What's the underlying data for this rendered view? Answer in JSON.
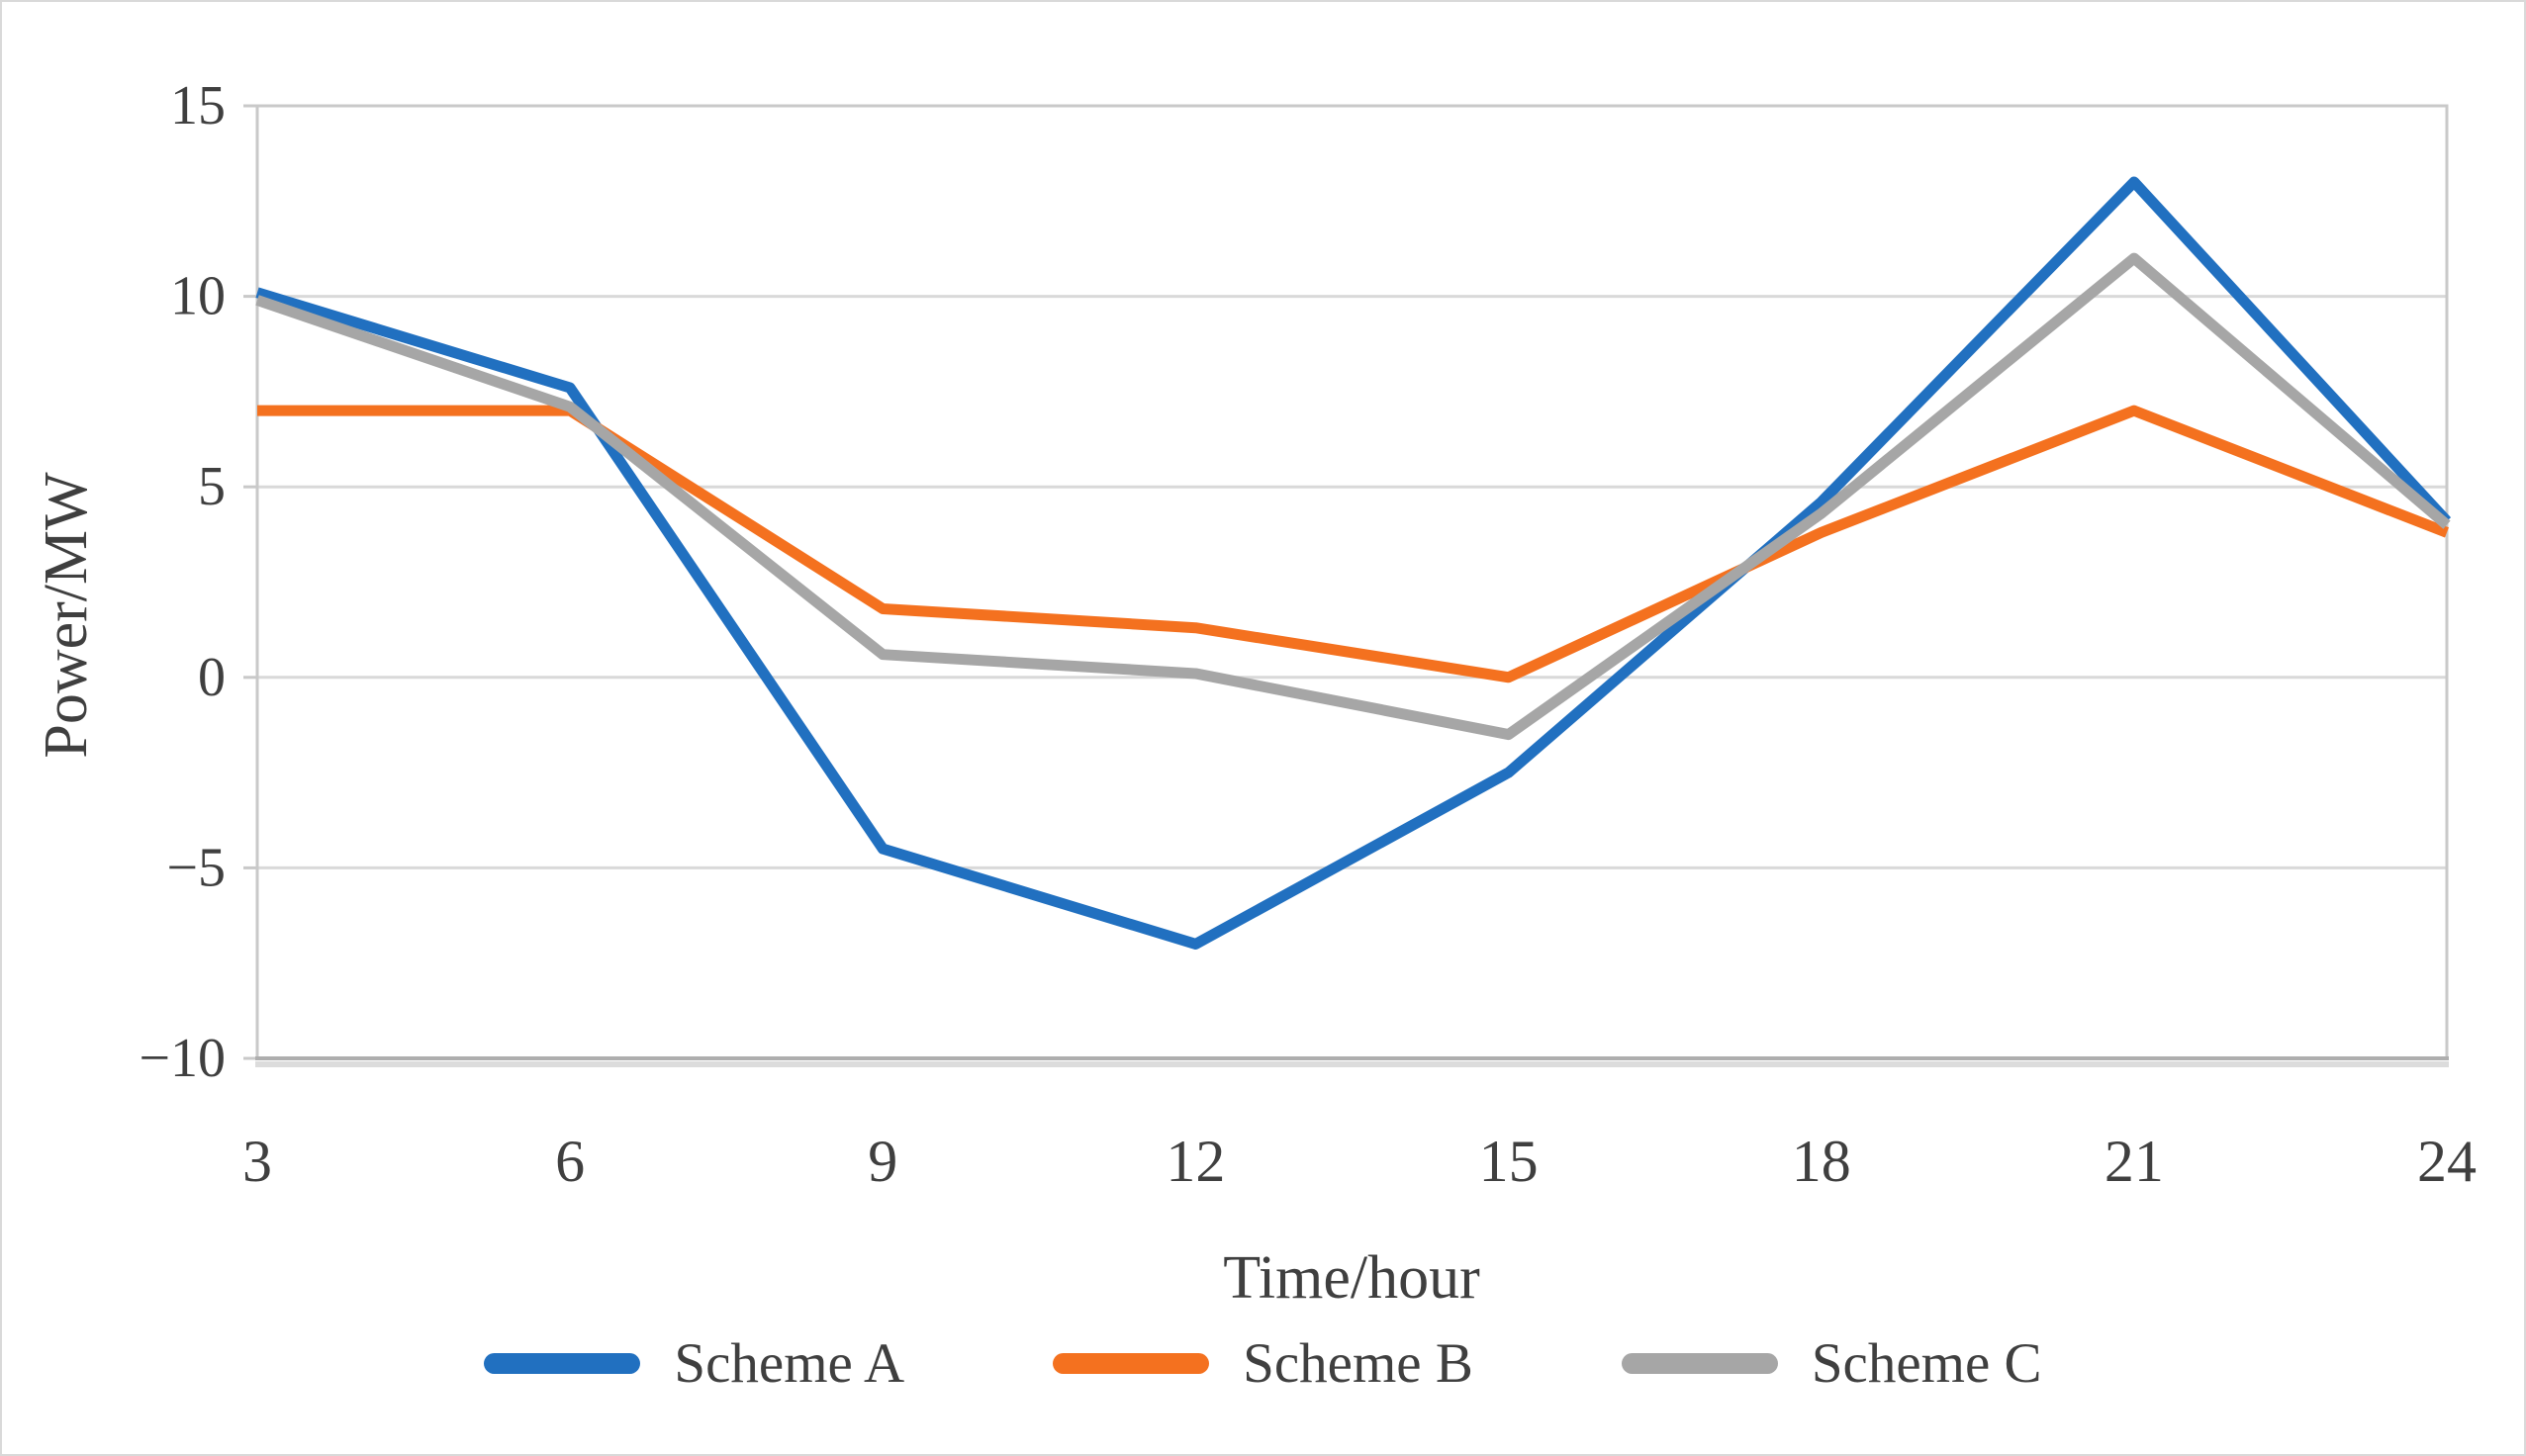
{
  "chart_data": {
    "type": "line",
    "title": "",
    "xlabel": "Time/hour",
    "ylabel": "Power/MW",
    "x": [
      3,
      6,
      9,
      12,
      15,
      18,
      21,
      24
    ],
    "series": [
      {
        "name": "Scheme A",
        "color": "#2170c0",
        "values": [
          10.1,
          7.6,
          -4.5,
          -7.0,
          -2.5,
          4.6,
          13.0,
          4.1
        ]
      },
      {
        "name": "Scheme B",
        "color": "#f4711f",
        "values": [
          7.0,
          7.0,
          1.8,
          1.3,
          0.0,
          3.8,
          7.0,
          3.8
        ]
      },
      {
        "name": "Scheme C",
        "color": "#a6a6a6",
        "values": [
          9.9,
          7.1,
          0.6,
          0.1,
          -1.5,
          4.3,
          11.0,
          4.0
        ]
      }
    ],
    "xlim": [
      3,
      24
    ],
    "ylim": [
      -10,
      15
    ],
    "xticks": [
      3,
      6,
      9,
      12,
      15,
      18,
      21,
      24
    ],
    "yticks": [
      15,
      10,
      5,
      0,
      -5,
      -10
    ],
    "grid": true,
    "legend_position": "bottom",
    "line_width": 11
  },
  "style_colors": {
    "grid": "#d9d9d9",
    "plot_border": "#c9c9c9",
    "bottom_axis": "#aeaeae",
    "bottom_axis_shadow": "#dcdcdc",
    "text": "#3f3f3f"
  }
}
